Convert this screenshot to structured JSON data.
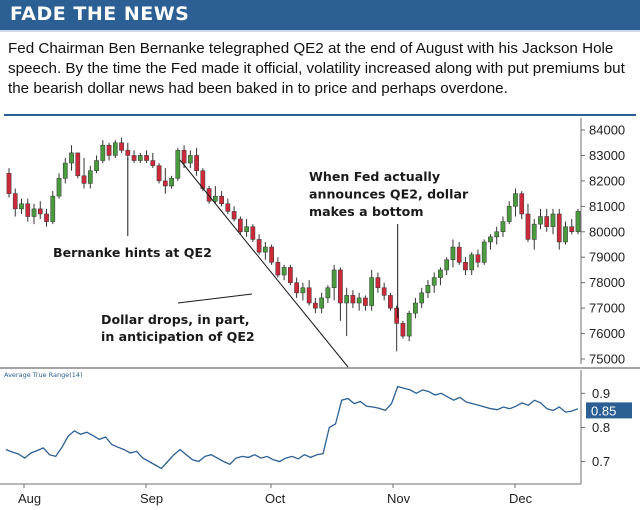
{
  "header": {
    "title": "FADE THE NEWS"
  },
  "description": "Fed Chairman Ben Bernanke telegraphed QE2 at the end of August with his Jackson Hole speech. By the time the Fed made it official, volatility increased along with put premiums but the bearish dollar news had been baked in to price and perhaps overdone.",
  "colors": {
    "header_bg": "#2c5f93",
    "up_candle": "#4a9a3e",
    "down_candle": "#cc2a3a",
    "atr_line": "#2c5f93",
    "value_badge": "#2c5f93"
  },
  "chart_data": [
    {
      "type": "candlestick",
      "title": "",
      "x_axis": {
        "ticks": [
          "Aug",
          "Sep",
          "Oct",
          "Nov",
          "Dec"
        ]
      },
      "y_axis": {
        "ticks": [
          "84000",
          "83000",
          "82000",
          "81000",
          "80000",
          "79000",
          "78000",
          "77000",
          "76000",
          "75000"
        ],
        "range": [
          74700,
          84250
        ]
      },
      "candles": [
        [
          82300,
          82500,
          81350,
          81500
        ],
        [
          81500,
          81700,
          80600,
          80900
        ],
        [
          80900,
          81300,
          80700,
          81100
        ],
        [
          81100,
          81300,
          80400,
          80600
        ],
        [
          80600,
          81100,
          80300,
          80900
        ],
        [
          80900,
          81200,
          80500,
          80700
        ],
        [
          80700,
          80900,
          80200,
          80400
        ],
        [
          80400,
          81600,
          80300,
          81400
        ],
        [
          81400,
          82300,
          81300,
          82100
        ],
        [
          82100,
          82900,
          81900,
          82700
        ],
        [
          82700,
          83400,
          82400,
          83100
        ],
        [
          83100,
          83100,
          82100,
          82200
        ],
        [
          82200,
          82900,
          81700,
          81900
        ],
        [
          81900,
          82600,
          81700,
          82400
        ],
        [
          82400,
          83000,
          82300,
          82800
        ],
        [
          82800,
          83600,
          82700,
          83400
        ],
        [
          83400,
          83500,
          82800,
          83000
        ],
        [
          83000,
          83600,
          82900,
          83500
        ],
        [
          83500,
          83700,
          83100,
          83200
        ],
        [
          83200,
          83500,
          82800,
          83000
        ],
        [
          83000,
          83200,
          82700,
          82800
        ],
        [
          82800,
          83100,
          82700,
          83000
        ],
        [
          83000,
          83200,
          82700,
          82800
        ],
        [
          82800,
          83100,
          82500,
          82600
        ],
        [
          82600,
          82700,
          81900,
          82000
        ],
        [
          82000,
          82500,
          81500,
          81800
        ],
        [
          81800,
          82200,
          81700,
          82100
        ],
        [
          82100,
          83300,
          82000,
          83200
        ],
        [
          83200,
          83400,
          82500,
          82700
        ],
        [
          82700,
          83200,
          82500,
          83000
        ],
        [
          83000,
          83300,
          82200,
          82400
        ],
        [
          82400,
          82500,
          81600,
          81700
        ],
        [
          81700,
          81800,
          81100,
          81200
        ],
        [
          81200,
          81800,
          81100,
          81400
        ],
        [
          81400,
          81600,
          81000,
          81100
        ],
        [
          81100,
          81300,
          80700,
          80800
        ],
        [
          80800,
          81000,
          80400,
          80500
        ],
        [
          80500,
          80600,
          79900,
          80000
        ],
        [
          80000,
          80500,
          79800,
          80200
        ],
        [
          80200,
          80300,
          79600,
          79700
        ],
        [
          79700,
          79900,
          79100,
          79200
        ],
        [
          79200,
          79600,
          78900,
          79400
        ],
        [
          79400,
          79500,
          78700,
          78800
        ],
        [
          78800,
          79000,
          78200,
          78300
        ],
        [
          78300,
          78700,
          78100,
          78600
        ],
        [
          78600,
          78700,
          77900,
          78000
        ],
        [
          78000,
          78200,
          77400,
          77600
        ],
        [
          77600,
          78000,
          77300,
          77800
        ],
        [
          77800,
          78100,
          77100,
          77200
        ],
        [
          77200,
          77400,
          76800,
          77000
        ],
        [
          77000,
          77600,
          76800,
          77400
        ],
        [
          77400,
          77900,
          77200,
          77800
        ],
        [
          77800,
          78700,
          77300,
          78500
        ],
        [
          78500,
          78600,
          76500,
          77200
        ],
        [
          77200,
          77800,
          75900,
          77500
        ],
        [
          77500,
          77700,
          77000,
          77200
        ],
        [
          77200,
          77600,
          76900,
          77400
        ],
        [
          77400,
          77500,
          76900,
          77100
        ],
        [
          77100,
          78500,
          76900,
          78200
        ],
        [
          78200,
          78400,
          77600,
          77800
        ],
        [
          77800,
          78000,
          77300,
          77500
        ],
        [
          77500,
          77600,
          76900,
          77000
        ],
        [
          77000,
          77100,
          75300,
          76400
        ],
        [
          76400,
          76500,
          75800,
          75900
        ],
        [
          75900,
          76900,
          75700,
          76800
        ],
        [
          76800,
          77400,
          76600,
          77200
        ],
        [
          77200,
          77800,
          77000,
          77600
        ],
        [
          77600,
          78100,
          77400,
          77900
        ],
        [
          77900,
          78400,
          77600,
          78200
        ],
        [
          78200,
          78600,
          77900,
          78500
        ],
        [
          78500,
          79000,
          78300,
          78900
        ],
        [
          78900,
          79700,
          78600,
          79400
        ],
        [
          79400,
          79600,
          78700,
          78800
        ],
        [
          78800,
          79000,
          78300,
          78500
        ],
        [
          78500,
          79200,
          78300,
          79100
        ],
        [
          79100,
          79300,
          78600,
          78800
        ],
        [
          78800,
          79700,
          78700,
          79600
        ],
        [
          79600,
          79900,
          79300,
          79800
        ],
        [
          79800,
          80200,
          79500,
          80000
        ],
        [
          80000,
          80600,
          79800,
          80400
        ],
        [
          80400,
          81200,
          80300,
          81000
        ],
        [
          81000,
          81700,
          80600,
          81500
        ],
        [
          81500,
          81600,
          80500,
          80700
        ],
        [
          80700,
          81100,
          79600,
          79700
        ],
        [
          79700,
          80500,
          79300,
          80300
        ],
        [
          80300,
          80900,
          80100,
          80600
        ],
        [
          80600,
          80900,
          80000,
          80200
        ],
        [
          80200,
          80900,
          79900,
          80700
        ],
        [
          80700,
          80900,
          79300,
          79600
        ],
        [
          79600,
          80400,
          79500,
          80200
        ],
        [
          80200,
          80500,
          79900,
          80000
        ],
        [
          80000,
          80900,
          79900,
          80800
        ]
      ],
      "annotations": [
        {
          "lines": [
            "Bernanke hints at QE2"
          ]
        },
        {
          "lines": [
            "Dollar drops, in part,",
            "in anticipation of QE2"
          ]
        },
        {
          "lines": [
            "When Fed actually",
            "announces QE2, dollar",
            "makes a bottom"
          ]
        }
      ]
    },
    {
      "type": "line",
      "title": "Average True Range(14)",
      "y_axis": {
        "ticks": [
          "0.9",
          "0.8",
          "0.7"
        ],
        "range": [
          0.64,
          0.945
        ]
      },
      "current_value": "0.85",
      "values": [
        0.735,
        0.728,
        0.722,
        0.71,
        0.725,
        0.732,
        0.74,
        0.72,
        0.715,
        0.742,
        0.775,
        0.79,
        0.78,
        0.786,
        0.776,
        0.765,
        0.772,
        0.75,
        0.742,
        0.735,
        0.725,
        0.73,
        0.71,
        0.7,
        0.69,
        0.68,
        0.7,
        0.72,
        0.735,
        0.72,
        0.705,
        0.7,
        0.715,
        0.72,
        0.71,
        0.7,
        0.692,
        0.71,
        0.715,
        0.712,
        0.72,
        0.71,
        0.715,
        0.705,
        0.7,
        0.71,
        0.715,
        0.708,
        0.72,
        0.712,
        0.72,
        0.723,
        0.8,
        0.81,
        0.88,
        0.885,
        0.87,
        0.876,
        0.862,
        0.86,
        0.856,
        0.85,
        0.87,
        0.92,
        0.915,
        0.91,
        0.9,
        0.91,
        0.905,
        0.895,
        0.9,
        0.89,
        0.88,
        0.888,
        0.875,
        0.87,
        0.865,
        0.86,
        0.855,
        0.852,
        0.86,
        0.855,
        0.862,
        0.872,
        0.865,
        0.88,
        0.872,
        0.855,
        0.85,
        0.86,
        0.845,
        0.848,
        0.855
      ]
    }
  ]
}
